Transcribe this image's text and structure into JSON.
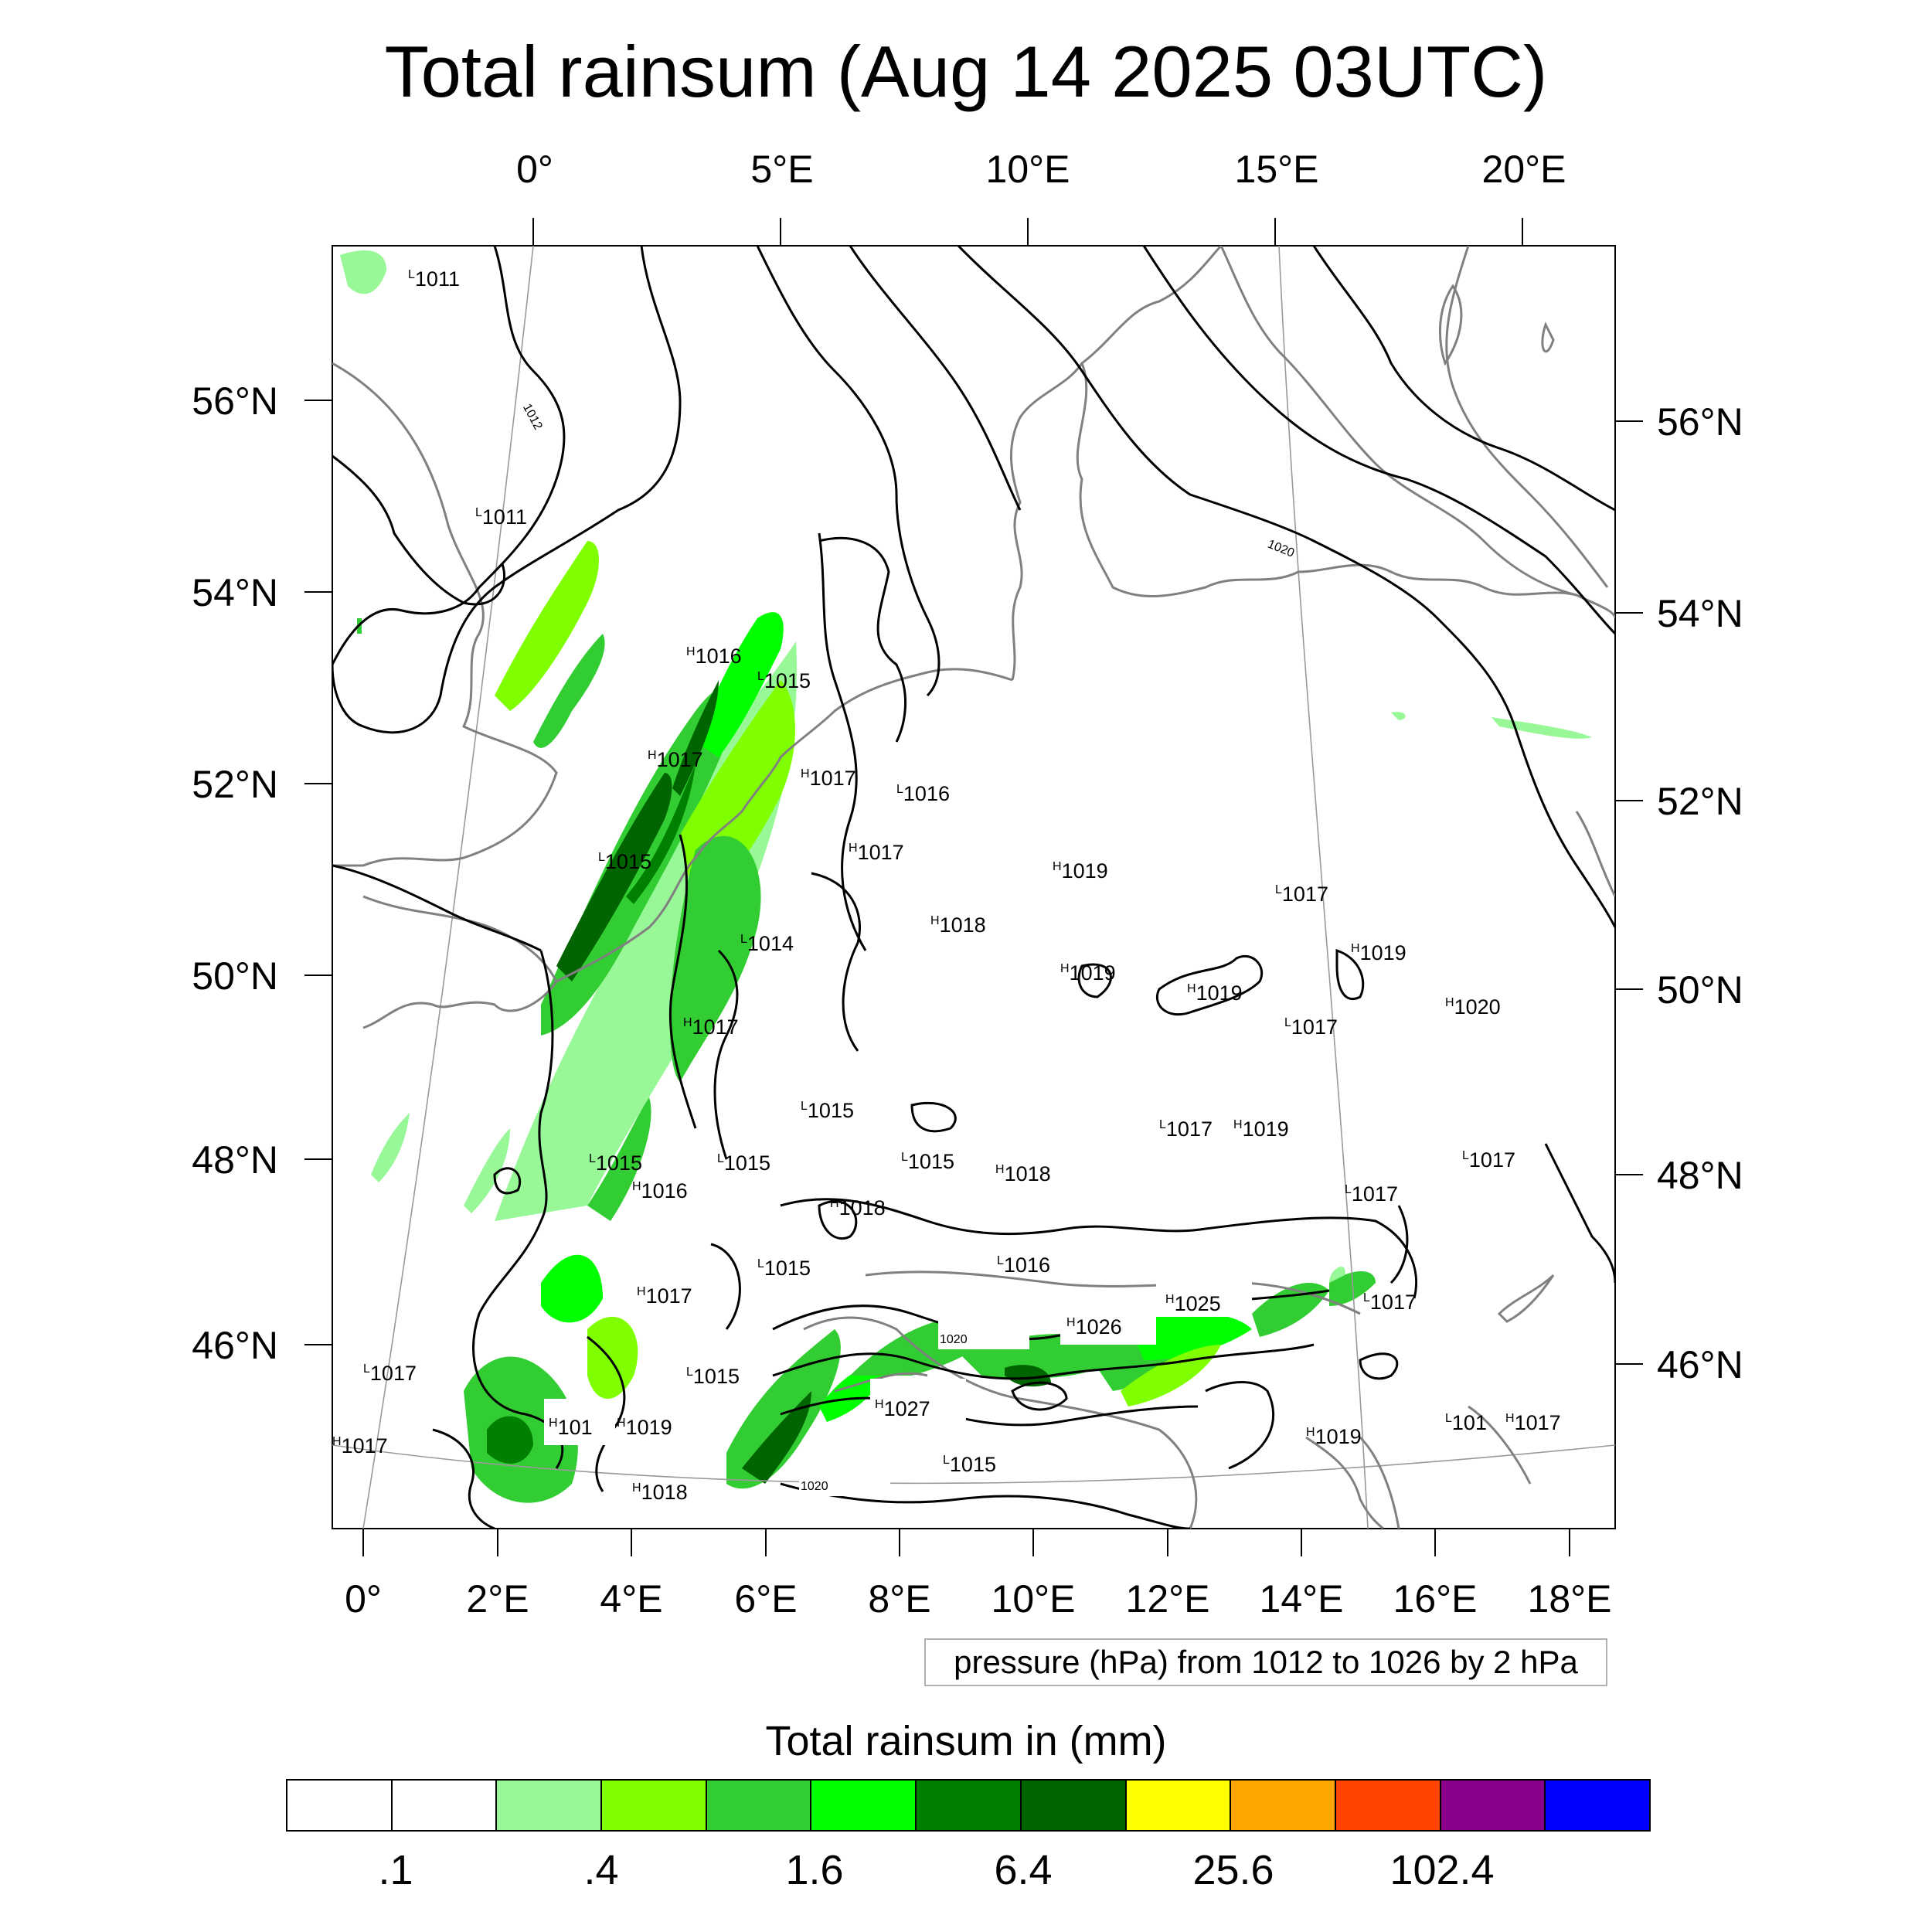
{
  "title": "Total rainsum (Aug 14 2025 03UTC)",
  "top_lon_labels": [
    "0°",
    "5°E",
    "10°E",
    "15°E",
    "20°E"
  ],
  "bottom_lon_labels": [
    "0°",
    "2°E",
    "4°E",
    "6°E",
    "8°E",
    "10°E",
    "12°E",
    "14°E",
    "16°E",
    "18°E"
  ],
  "left_lat_labels": [
    "56°N",
    "54°N",
    "52°N",
    "50°N",
    "48°N",
    "46°N"
  ],
  "right_lat_labels": [
    "56°N",
    "54°N",
    "52°N",
    "50°N",
    "48°N",
    "46°N"
  ],
  "contour_labels": [
    "1012",
    "1020",
    "1020",
    "1020"
  ],
  "pressure_centers": [
    {
      "t": "L",
      "v": "1011"
    },
    {
      "t": "L",
      "v": "1011"
    },
    {
      "t": "H",
      "v": "1016"
    },
    {
      "t": "L",
      "v": "1015"
    },
    {
      "t": "H",
      "v": "1017"
    },
    {
      "t": "H",
      "v": "1017"
    },
    {
      "t": "L",
      "v": "1016"
    },
    {
      "t": "H",
      "v": "1017"
    },
    {
      "t": "L",
      "v": "1015"
    },
    {
      "t": "H",
      "v": "1019"
    },
    {
      "t": "L",
      "v": "1017"
    },
    {
      "t": "H",
      "v": "1018"
    },
    {
      "t": "L",
      "v": "1014"
    },
    {
      "t": "H",
      "v": "1019"
    },
    {
      "t": "H",
      "v": "1019"
    },
    {
      "t": "H",
      "v": "1019"
    },
    {
      "t": "H",
      "v": "1020"
    },
    {
      "t": "H",
      "v": "1017"
    },
    {
      "t": "L",
      "v": "1017"
    },
    {
      "t": "L",
      "v": "1015"
    },
    {
      "t": "L",
      "v": "1017"
    },
    {
      "t": "H",
      "v": "1019"
    },
    {
      "t": "L",
      "v": "1015"
    },
    {
      "t": "L",
      "v": "1015"
    },
    {
      "t": "L",
      "v": "1015"
    },
    {
      "t": "H",
      "v": "1018"
    },
    {
      "t": "H",
      "v": "1016"
    },
    {
      "t": "L",
      "v": "1017"
    },
    {
      "t": "L",
      "v": "1017"
    },
    {
      "t": "H",
      "v": "1018"
    },
    {
      "t": "L",
      "v": "1015"
    },
    {
      "t": "L",
      "v": "1016"
    },
    {
      "t": "H",
      "v": "1017"
    },
    {
      "t": "H",
      "v": "1025"
    },
    {
      "t": "L",
      "v": "1017"
    },
    {
      "t": "H",
      "v": "1026"
    },
    {
      "t": "L",
      "v": "1017"
    },
    {
      "t": "L",
      "v": "1015"
    },
    {
      "t": "H",
      "v": "1027"
    },
    {
      "t": "H",
      "v": "101"
    },
    {
      "t": "H",
      "v": "1019"
    },
    {
      "t": "H",
      "v": "1019"
    },
    {
      "t": "L",
      "v": "101"
    },
    {
      "t": "H",
      "v": "1017"
    },
    {
      "t": "H",
      "v": "1017"
    },
    {
      "t": "H",
      "v": "1018"
    },
    {
      "t": "L",
      "v": "1015"
    }
  ],
  "legend_note": "pressure (hPa) from 1012 to 1026 by 2 hPa",
  "colorbar": {
    "title": "Total rainsum in (mm)",
    "colors": [
      "#ffffff",
      "#ffffff",
      "#98f898",
      "#80ff00",
      "#32cd32",
      "#00ff00",
      "#008000",
      "#006400",
      "#ffff00",
      "#ffa500",
      "#ff4500",
      "#8b008b",
      "#0000ff"
    ],
    "labels": [
      ".1",
      ".4",
      "1.6",
      "6.4",
      "25.6",
      "102.4"
    ]
  }
}
